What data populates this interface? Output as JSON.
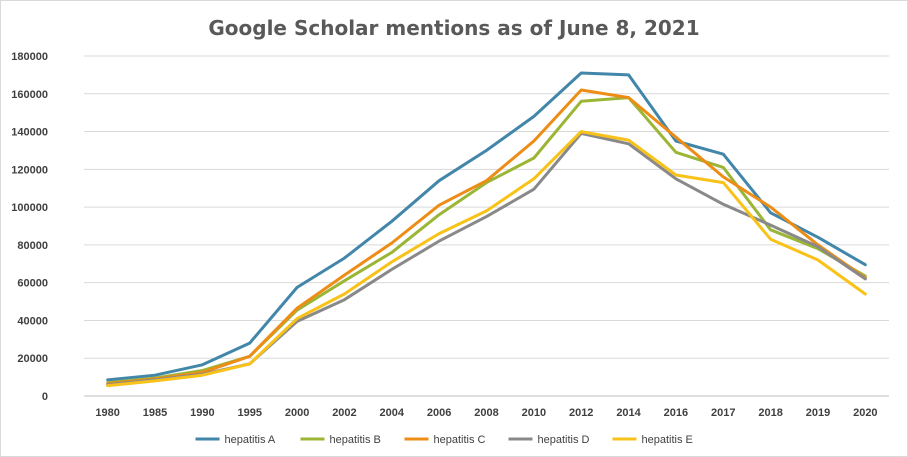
{
  "chart_data": {
    "type": "line",
    "title": "Google Scholar mentions as of June 8, 2021",
    "xlabel": "",
    "ylabel": "",
    "categories": [
      "1980",
      "1985",
      "1990",
      "1995",
      "2000",
      "2002",
      "2004",
      "2006",
      "2008",
      "2010",
      "2012",
      "2014",
      "2016",
      "2017",
      "2018",
      "2019",
      "2020"
    ],
    "ylim": [
      0,
      180000
    ],
    "yticks": [
      "0",
      "20000",
      "40000",
      "60000",
      "80000",
      "100000",
      "120000",
      "140000",
      "160000",
      "180000"
    ],
    "ytick_values": [
      0,
      20000,
      40000,
      60000,
      80000,
      100000,
      120000,
      140000,
      160000,
      180000
    ],
    "grid": true,
    "legend_position": "bottom",
    "series": [
      {
        "name": "hepatitis A",
        "color": "#4286AA",
        "values": [
          8500,
          11000,
          16500,
          28000,
          57500,
          73000,
          92500,
          114000,
          130000,
          148000,
          171000,
          170000,
          135000,
          128000,
          97000,
          84000,
          69500
        ]
      },
      {
        "name": "hepatitis B",
        "color": "#9BB535",
        "values": [
          7000,
          9500,
          13500,
          21000,
          45500,
          61000,
          76000,
          96000,
          113000,
          126000,
          156000,
          158000,
          129000,
          121000,
          88000,
          78000,
          63500
        ]
      },
      {
        "name": "hepatitis C",
        "color": "#ED8D16",
        "values": [
          6500,
          9000,
          12500,
          21000,
          46500,
          64000,
          81000,
          101000,
          114000,
          135000,
          162000,
          158000,
          137000,
          116000,
          100000,
          80000,
          62500
        ]
      },
      {
        "name": "hepatitis D",
        "color": "#898989",
        "values": [
          6000,
          8500,
          11500,
          17000,
          39500,
          51000,
          67000,
          82000,
          95000,
          109500,
          139000,
          133500,
          115000,
          101500,
          90500,
          79000,
          62000
        ]
      },
      {
        "name": "hepatitis E",
        "color": "#F8C218",
        "values": [
          5500,
          8000,
          11000,
          17000,
          41000,
          54000,
          71000,
          86000,
          98000,
          115000,
          140000,
          135500,
          117000,
          113000,
          83000,
          72000,
          54000
        ]
      }
    ]
  }
}
